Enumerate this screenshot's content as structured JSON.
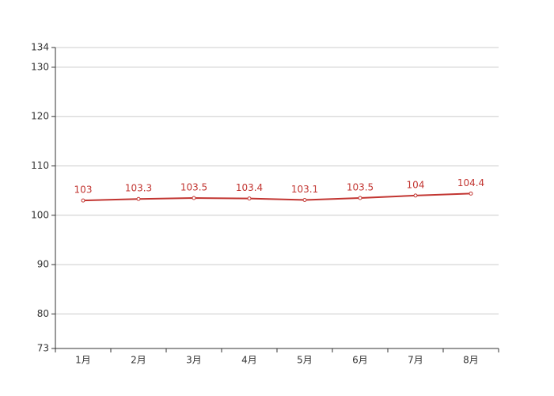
{
  "chart_data": {
    "type": "line",
    "categories": [
      "1月",
      "2月",
      "3月",
      "4月",
      "5月",
      "6月",
      "7月",
      "8月"
    ],
    "series": [
      {
        "color": "#c23531",
        "values": [
          103,
          103.3,
          103.5,
          103.4,
          103.1,
          103.5,
          104,
          104.4
        ]
      }
    ],
    "ylim": [
      73,
      134
    ],
    "yticks": [
      73,
      80,
      90,
      100,
      110,
      120,
      130,
      134
    ],
    "grid": true
  }
}
